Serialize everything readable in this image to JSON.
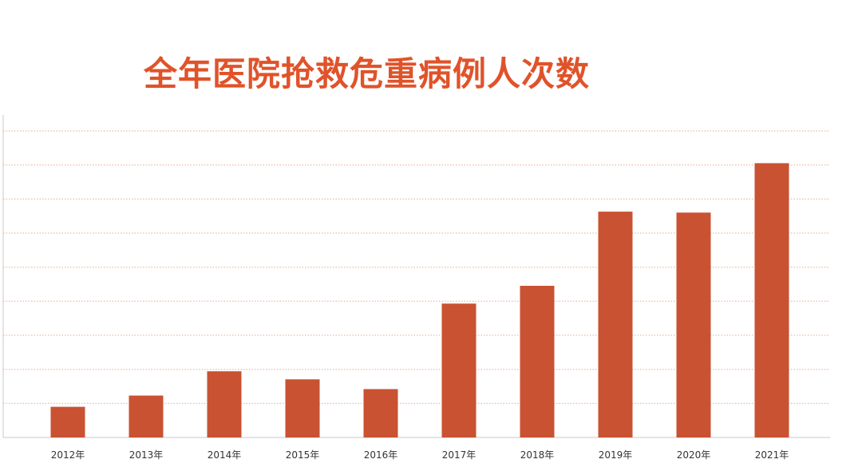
{
  "chart_data": {
    "type": "bar",
    "title": "全年医院抢救危重病例人次数",
    "categories": [
      "2012年",
      "2013年",
      "2014年",
      "2015年",
      "2016年",
      "2017年",
      "2018年",
      "2019年",
      "2020年",
      "2021年"
    ],
    "values": [
      0.95,
      1.3,
      2.05,
      1.8,
      1.5,
      4.15,
      4.7,
      7.0,
      6.97,
      8.5
    ],
    "ylim": [
      0,
      9.5
    ],
    "xlabel": "",
    "ylabel": "",
    "grid": "horizontal dotted",
    "legend": "none",
    "y_tick_labels_shown": false
  },
  "colors": {
    "bar": "#c95232",
    "title": "#e0532a",
    "grid": "#e9a98c",
    "axis": "#c8c8c8"
  }
}
